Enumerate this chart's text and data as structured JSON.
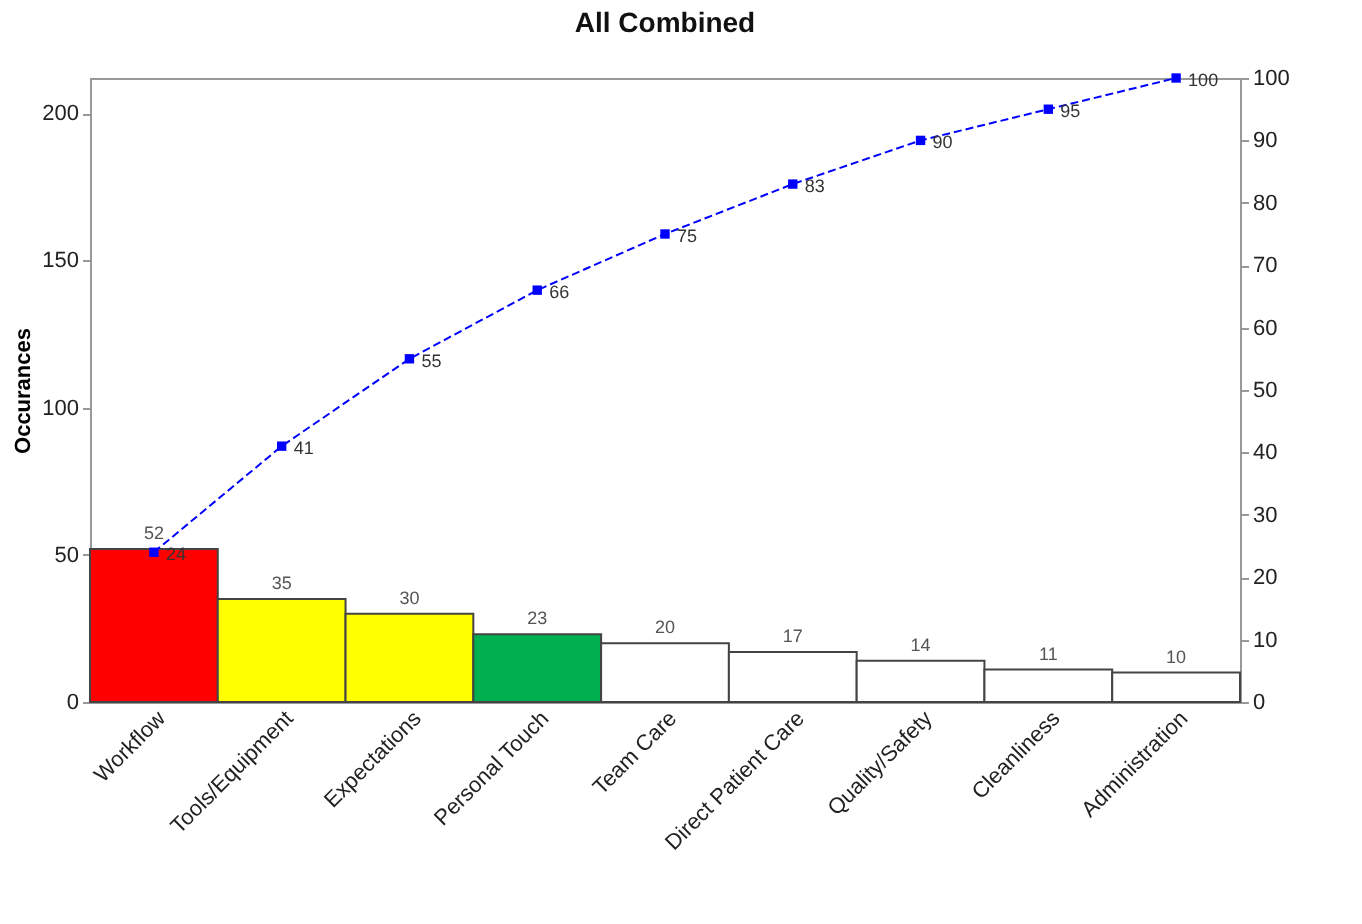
{
  "chart_data": {
    "type": "bar",
    "title": "All Combined",
    "ylabel": "Occurances",
    "categories": [
      "Workflow",
      "Tools/Equipment",
      "Expectations",
      "Personal Touch",
      "Team Care",
      "Direct Patient Care",
      "Quality/Safety",
      "Cleanliness",
      "Administration"
    ],
    "series": [
      {
        "colors": [
          "#ff0000",
          "#ffff00",
          "#ffff00",
          "#00b050",
          "#ffffff",
          "#ffffff",
          "#ffffff",
          "#ffffff",
          "#ffffff"
        ],
        "values": [
          52,
          35,
          30,
          23,
          20,
          17,
          14,
          11,
          10
        ]
      },
      {
        "type": "line",
        "axis": "y2",
        "color": "#0000ff",
        "marker": "square",
        "line_style": "dashed",
        "values": [
          24,
          41,
          55,
          66,
          75,
          83,
          90,
          95,
          100
        ]
      }
    ],
    "ylim": [
      0,
      212
    ],
    "yticks": [
      0,
      50,
      100,
      150,
      200
    ],
    "y2lim": [
      0,
      100
    ],
    "y2ticks": [
      0,
      10,
      20,
      30,
      40,
      50,
      60,
      70,
      80,
      90,
      100
    ],
    "data_labels": true,
    "grid": false
  }
}
